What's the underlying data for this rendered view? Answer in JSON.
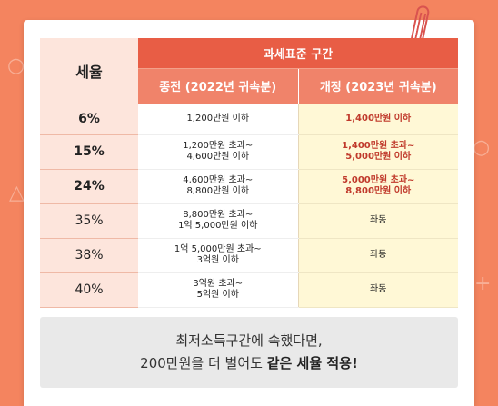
{
  "header": {
    "rate": "세율",
    "group": "과세표준 구간",
    "old": "종전 (2022년 귀속분)",
    "new": "개정 (2023년 귀속분)"
  },
  "rows": [
    {
      "rate": "6%",
      "old": [
        "1,200만원 이하"
      ],
      "new": [
        "1,400만원 이하"
      ]
    },
    {
      "rate": "15%",
      "old": [
        "1,200만원 초과~",
        "4,600만원 이하"
      ],
      "new": [
        "1,400만원 초과~",
        "5,000만원 이하"
      ]
    },
    {
      "rate": "24%",
      "old": [
        "4,600만원 초과~",
        "8,800만원 이하"
      ],
      "new": [
        "5,000만원 초과~",
        "8,800만원 이하"
      ]
    },
    {
      "rate": "35%",
      "old": [
        "8,800만원 초과~",
        "1억 5,000만원 이하"
      ],
      "new": [
        "좌동"
      ]
    },
    {
      "rate": "38%",
      "old": [
        "1억 5,000만원 초과~",
        "3억원 이하"
      ],
      "new": [
        "좌동"
      ]
    },
    {
      "rate": "40%",
      "old": [
        "3억원 초과~",
        "5억원 이하"
      ],
      "new": [
        "좌동"
      ]
    }
  ],
  "note": {
    "line1": "최저소득구간에 속했다면,",
    "line2_prefix": "200만원을 더 벌어도 ",
    "line2_bold": "같은 세율 적용!"
  },
  "colors": {
    "background": "#f4845f",
    "header_dark": "#e85d45",
    "header_light": "#f0836a",
    "rate_cell": "#fde5dc",
    "new_cell": "#fff8d6",
    "highlight_text": "#c0392b"
  }
}
